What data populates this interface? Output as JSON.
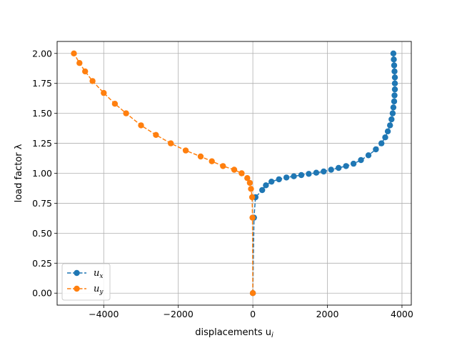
{
  "chart_data": {
    "type": "line",
    "title": "",
    "xlabel": "displacements u",
    "xlabel_sub": "i",
    "ylabel": "load factor λ",
    "xlim": [
      -5250,
      4250
    ],
    "ylim": [
      -0.1,
      2.1
    ],
    "x_ticks": [
      -4000,
      -2000,
      0,
      2000,
      4000
    ],
    "x_tick_labels": [
      "−4000",
      "−2000",
      "0",
      "2000",
      "4000"
    ],
    "y_ticks": [
      0.0,
      0.25,
      0.5,
      0.75,
      1.0,
      1.25,
      1.5,
      1.75,
      2.0
    ],
    "y_tick_labels": [
      "0.00",
      "0.25",
      "0.50",
      "0.75",
      "1.00",
      "1.25",
      "1.50",
      "1.75",
      "2.00"
    ],
    "grid": true,
    "legend_position": "bottom-left",
    "series": [
      {
        "name": "u",
        "name_sub": "x",
        "color": "#1f77b4",
        "linestyle": "dashed",
        "marker": "circle",
        "points": [
          [
            0,
            0.0
          ],
          [
            30,
            0.63
          ],
          [
            70,
            0.8
          ],
          [
            250,
            0.86
          ],
          [
            350,
            0.9
          ],
          [
            500,
            0.93
          ],
          [
            700,
            0.95
          ],
          [
            900,
            0.965
          ],
          [
            1100,
            0.975
          ],
          [
            1300,
            0.985
          ],
          [
            1500,
            0.995
          ],
          [
            1700,
            1.005
          ],
          [
            1900,
            1.015
          ],
          [
            2100,
            1.03
          ],
          [
            2300,
            1.045
          ],
          [
            2500,
            1.06
          ],
          [
            2700,
            1.08
          ],
          [
            2900,
            1.11
          ],
          [
            3100,
            1.15
          ],
          [
            3300,
            1.2
          ],
          [
            3450,
            1.25
          ],
          [
            3550,
            1.3
          ],
          [
            3620,
            1.35
          ],
          [
            3680,
            1.4
          ],
          [
            3720,
            1.45
          ],
          [
            3750,
            1.5
          ],
          [
            3770,
            1.55
          ],
          [
            3790,
            1.6
          ],
          [
            3800,
            1.65
          ],
          [
            3810,
            1.7
          ],
          [
            3810,
            1.75
          ],
          [
            3810,
            1.8
          ],
          [
            3800,
            1.85
          ],
          [
            3790,
            1.9
          ],
          [
            3780,
            1.95
          ],
          [
            3770,
            2.0
          ]
        ]
      },
      {
        "name": "u",
        "name_sub": "y",
        "color": "#ff7f0e",
        "linestyle": "dashed",
        "marker": "circle",
        "points": [
          [
            0,
            0.0
          ],
          [
            -10,
            0.63
          ],
          [
            -20,
            0.8
          ],
          [
            -50,
            0.87
          ],
          [
            -80,
            0.92
          ],
          [
            -150,
            0.96
          ],
          [
            -300,
            1.0
          ],
          [
            -500,
            1.03
          ],
          [
            -800,
            1.06
          ],
          [
            -1100,
            1.1
          ],
          [
            -1400,
            1.14
          ],
          [
            -1800,
            1.19
          ],
          [
            -2200,
            1.25
          ],
          [
            -2600,
            1.32
          ],
          [
            -3000,
            1.4
          ],
          [
            -3400,
            1.5
          ],
          [
            -3700,
            1.58
          ],
          [
            -4000,
            1.67
          ],
          [
            -4300,
            1.77
          ],
          [
            -4500,
            1.85
          ],
          [
            -4650,
            1.92
          ],
          [
            -4800,
            2.0
          ]
        ]
      }
    ]
  }
}
